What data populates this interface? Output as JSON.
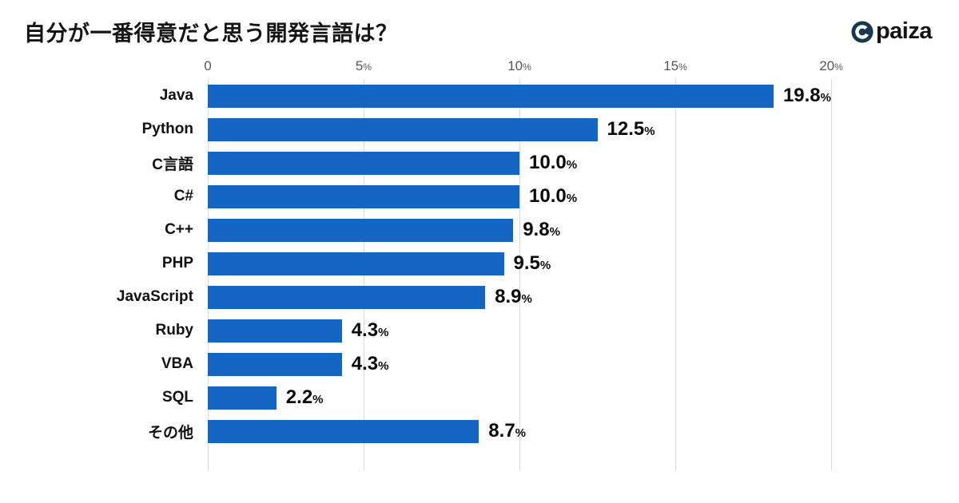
{
  "header": {
    "title": "自分が一番得意だと思う開発言語は？",
    "logo_text": "paiza",
    "logo_icon_color": "#17384e"
  },
  "chart_data": {
    "type": "bar",
    "orientation": "horizontal",
    "title": "自分が一番得意だと思う開発言語は？",
    "categories": [
      "Java",
      "Python",
      "C言語",
      "C#",
      "C++",
      "PHP",
      "JavaScript",
      "Ruby",
      "VBA",
      "SQL",
      "その他"
    ],
    "values": [
      19.8,
      12.5,
      10.0,
      10.0,
      9.8,
      9.5,
      8.9,
      4.3,
      4.3,
      2.2,
      8.7
    ],
    "value_labels": [
      "19.8",
      "12.5",
      "10.0",
      "10.0",
      "9.8",
      "9.5",
      "8.9",
      "4.3",
      "4.3",
      "2.2",
      "8.7"
    ],
    "value_suffix": "%",
    "xlim": [
      0,
      20
    ],
    "x_ticks": [
      0,
      5,
      10,
      15,
      20
    ],
    "x_tick_labels": [
      "0",
      "5%",
      "10%",
      "15%",
      "20%"
    ],
    "bar_color": "#1565c4",
    "grid": true,
    "grid_color": "#d9d9d9",
    "legend": "none"
  }
}
